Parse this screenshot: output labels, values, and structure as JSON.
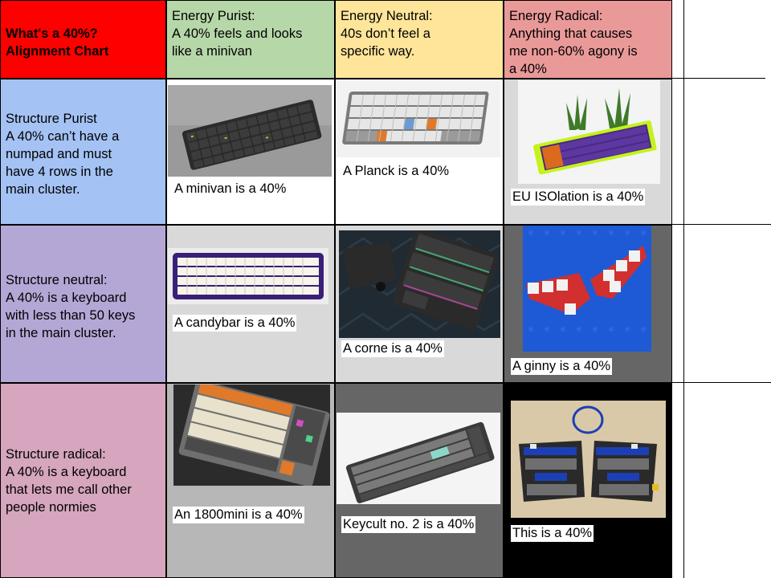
{
  "corner": {
    "title_line1": "What's a 40%?",
    "title_line2": "Alignment Chart"
  },
  "columns": [
    {
      "title": "Energy Purist:",
      "desc_line1": "A 40% feels and looks",
      "desc_line2": "like a minivan",
      "color": "#b6d7a8"
    },
    {
      "title": "Energy Neutral:",
      "desc_line1": "40s don’t feel a",
      "desc_line2": "specific way.",
      "color": "#ffe599"
    },
    {
      "title": "Energy Radical:",
      "desc_line1": "Anything that causes",
      "desc_line2": "me non-60% agony is",
      "desc_line3": "a 40%",
      "color": "#ea9999"
    }
  ],
  "rows": [
    {
      "title": "Structure Purist",
      "lines": [
        "A 40% can’t have a",
        "numpad and must",
        "have 4 rows in the",
        "main cluster."
      ],
      "color": "#a4c2f4"
    },
    {
      "title": "Structure neutral:",
      "lines": [
        "A 40% is a keyboard",
        "with less than 50 keys",
        "in the main cluster."
      ],
      "color": "#b4a7d6"
    },
    {
      "title": "Structure radical:",
      "lines": [
        "A 40% is a keyboard",
        "that lets me call other",
        "people normies"
      ],
      "color": "#d5a6bd"
    }
  ],
  "cells": [
    {
      "caption": "A minivan is a 40%",
      "image": "keyboard-minivan-photo"
    },
    {
      "caption": "A Planck is a 40%",
      "image": "keyboard-planck-photo"
    },
    {
      "caption": "EU ISOlation is a 40%",
      "image": "keyboard-isolation-plant-photo"
    },
    {
      "caption": "A candybar is a 40%",
      "image": "keyboard-candybar-photo"
    },
    {
      "caption": "A corne is a 40%",
      "image": "keyboard-corne-photo"
    },
    {
      "caption": "A ginny is a 40%",
      "image": "keyboard-ginny-lego-photo"
    },
    {
      "caption": "An 1800mini is a 40%",
      "image": "keyboard-1800mini-photo"
    },
    {
      "caption": "Keycult no. 2 is a 40%",
      "image": "keyboard-keycult-photo"
    },
    {
      "caption": "This is a 40%",
      "image": "keyboard-split-photo"
    }
  ],
  "colors": {
    "corner": "#ff0000",
    "grid": "#000000",
    "cell_bg_white": "#ffffff",
    "cell_bg_grey": "#cccccc",
    "cell_bg_dark": "#666666",
    "cell_bg_black": "#000000"
  }
}
